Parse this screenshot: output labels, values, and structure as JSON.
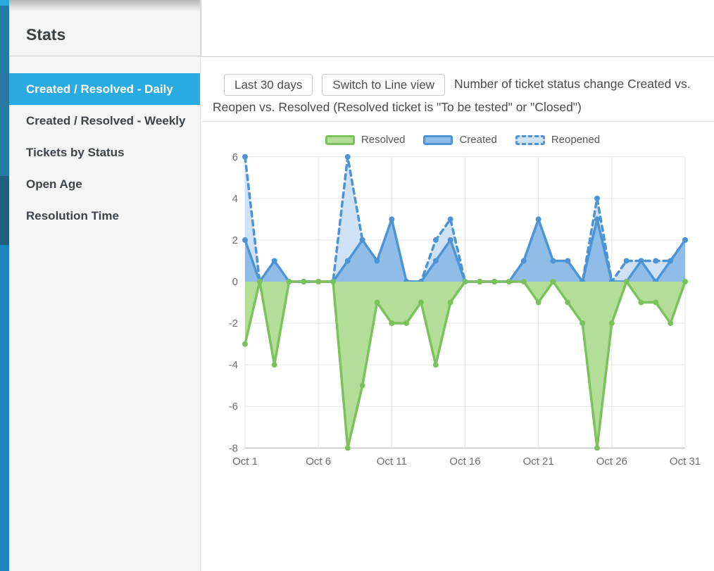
{
  "sidebar": {
    "title": "Stats",
    "items": [
      {
        "label": "Created / Resolved - Daily",
        "selected": true
      },
      {
        "label": "Created / Resolved - Weekly",
        "selected": false
      },
      {
        "label": "Tickets by Status",
        "selected": false
      },
      {
        "label": "Open Age",
        "selected": false
      },
      {
        "label": "Resolution Time",
        "selected": false
      }
    ]
  },
  "toolbar": {
    "range_button": "Last 30 days",
    "view_button": "Switch to Line view",
    "description": "Number of ticket status change Created vs. Reopen vs. Resolved (Resolved ticket is \"To be tested\" or \"Closed\")"
  },
  "chart_data": {
    "type": "area",
    "categories": [
      "Oct 1",
      "Oct 2",
      "Oct 3",
      "Oct 4",
      "Oct 5",
      "Oct 6",
      "Oct 7",
      "Oct 8",
      "Oct 9",
      "Oct 10",
      "Oct 11",
      "Oct 12",
      "Oct 13",
      "Oct 14",
      "Oct 15",
      "Oct 16",
      "Oct 17",
      "Oct 18",
      "Oct 19",
      "Oct 20",
      "Oct 21",
      "Oct 22",
      "Oct 23",
      "Oct 24",
      "Oct 25",
      "Oct 26",
      "Oct 27",
      "Oct 28",
      "Oct 29",
      "Oct 30",
      "Oct 31"
    ],
    "series": [
      {
        "name": "Resolved",
        "values": [
          -3,
          0,
          -4,
          0,
          0,
          0,
          0,
          -8,
          -5,
          -1,
          -2,
          -2,
          -1,
          -4,
          -1,
          0,
          0,
          0,
          0,
          0,
          -1,
          0,
          -1,
          -2,
          -8,
          -2,
          0,
          -1,
          -1,
          -2,
          0
        ],
        "style": "solid"
      },
      {
        "name": "Created",
        "values": [
          2,
          0,
          1,
          0,
          0,
          0,
          0,
          1,
          2,
          1,
          3,
          0,
          0,
          1,
          2,
          0,
          0,
          0,
          0,
          1,
          3,
          1,
          1,
          0,
          3,
          0,
          0,
          1,
          0,
          1,
          2
        ],
        "style": "solid"
      },
      {
        "name": "Reopened",
        "values": [
          6,
          0,
          0,
          0,
          0,
          0,
          0,
          6,
          2,
          0,
          0,
          0,
          0,
          2,
          3,
          0,
          0,
          0,
          0,
          0,
          0,
          0,
          0,
          0,
          4,
          0,
          1,
          1,
          1,
          1,
          2
        ],
        "style": "dashed"
      }
    ],
    "legend": [
      {
        "label": "Resolved"
      },
      {
        "label": "Created"
      },
      {
        "label": "Reopened"
      }
    ],
    "y_ticks": [
      6,
      4,
      2,
      0,
      -2,
      -4,
      -6,
      -8
    ],
    "x_tick_days": [
      1,
      6,
      11,
      16,
      21,
      26,
      31
    ],
    "ylim": [
      -8,
      6
    ],
    "grid": true,
    "legend_position": "top"
  },
  "colors": {
    "accent": "#29abe2",
    "resolved_line": "#7bc25e",
    "resolved_fill": "#b3de97",
    "created_line": "#4d94d6",
    "created_fill": "#90bce8",
    "reopened_line": "#4d94d6",
    "reopened_fill": "#cfe1f5",
    "grid": "#e4e4e4",
    "axis_line": "#ababab",
    "axis_text": "#6e6e6e"
  }
}
